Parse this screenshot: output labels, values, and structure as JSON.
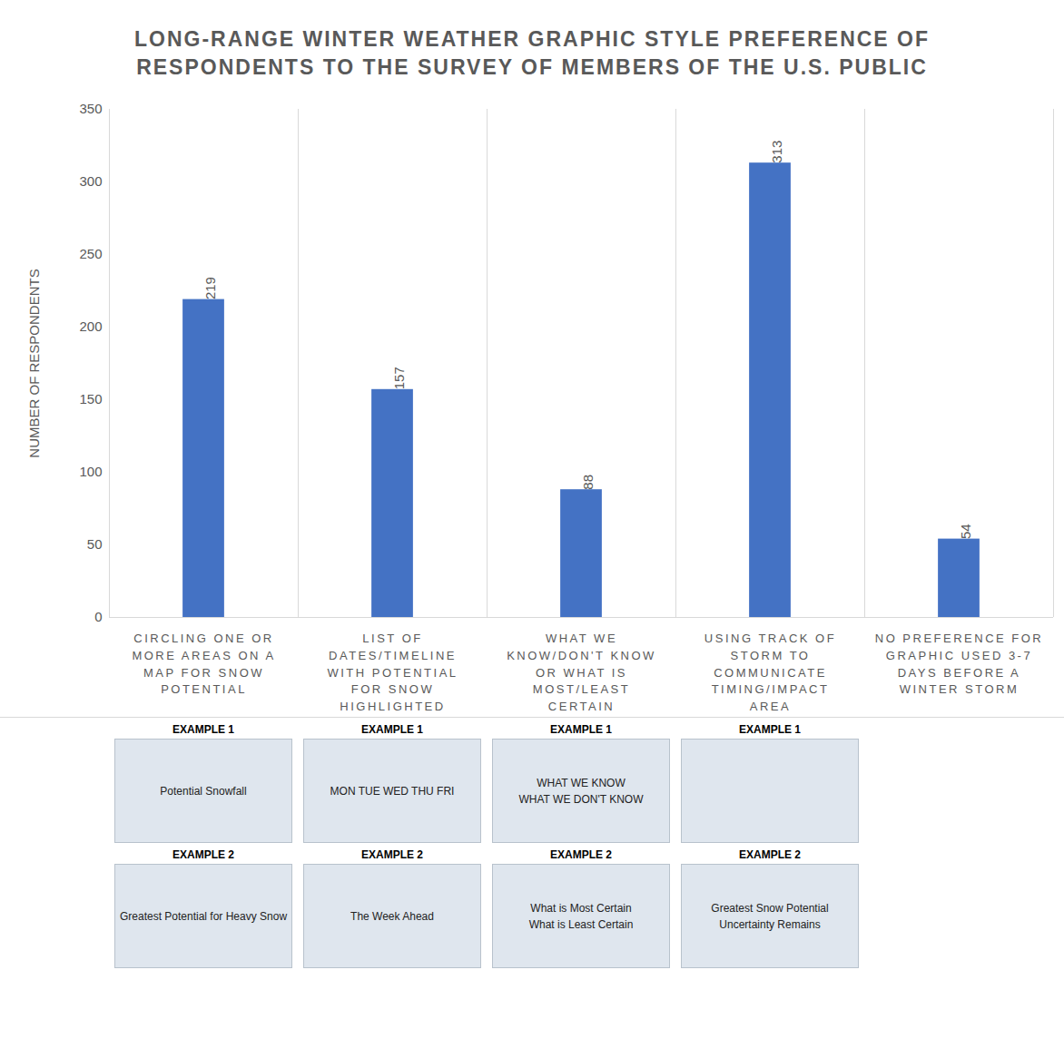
{
  "chart_data": {
    "type": "bar",
    "title": "LONG-RANGE WINTER WEATHER GRAPHIC STYLE PREFERENCE OF RESPONDENTS TO THE SURVEY OF MEMBERS OF THE U.S. PUBLIC",
    "y_label": "NUMBER OF RESPONDENTS",
    "categories": [
      "CIRCLING ONE OR MORE AREAS ON A MAP FOR SNOW POTENTIAL",
      "LIST OF DATES/TIMELINE WITH POTENTIAL FOR SNOW HIGHLIGHTED",
      "WHAT WE KNOW/DON'T KNOW OR WHAT IS MOST/LEAST CERTAIN",
      "USING TRACK OF STORM TO COMMUNICATE TIMING/IMPACT AREA",
      "NO PREFERENCE FOR GRAPHIC USED 3-7 DAYS BEFORE A WINTER STORM"
    ],
    "values": [
      219,
      157,
      88,
      313,
      54
    ],
    "color": "#4472c4",
    "ylim": [
      0,
      350
    ],
    "yticks": [
      0,
      50,
      100,
      150,
      200,
      250,
      300,
      350
    ],
    "grid": false,
    "data_labels": true
  },
  "examples": [
    [
      {
        "label": "EXAMPLE 1",
        "captions": [
          "Potential Snowfall"
        ]
      },
      {
        "label": "EXAMPLE 2",
        "captions": [
          "Greatest Potential for Heavy Snow"
        ]
      }
    ],
    [
      {
        "label": "EXAMPLE 1",
        "captions": [
          "MON TUE WED THU FRI"
        ]
      },
      {
        "label": "EXAMPLE 2",
        "captions": [
          "The Week Ahead"
        ]
      }
    ],
    [
      {
        "label": "EXAMPLE 1",
        "captions": [
          "WHAT WE KNOW",
          "WHAT WE DON'T KNOW"
        ]
      },
      {
        "label": "EXAMPLE 2",
        "captions": [
          "What is Most Certain",
          "What is Least Certain"
        ]
      }
    ],
    [
      {
        "label": "EXAMPLE 1",
        "captions": []
      },
      {
        "label": "EXAMPLE 2",
        "captions": [
          "Greatest Snow Potential",
          "Uncertainty Remains"
        ]
      }
    ]
  ]
}
